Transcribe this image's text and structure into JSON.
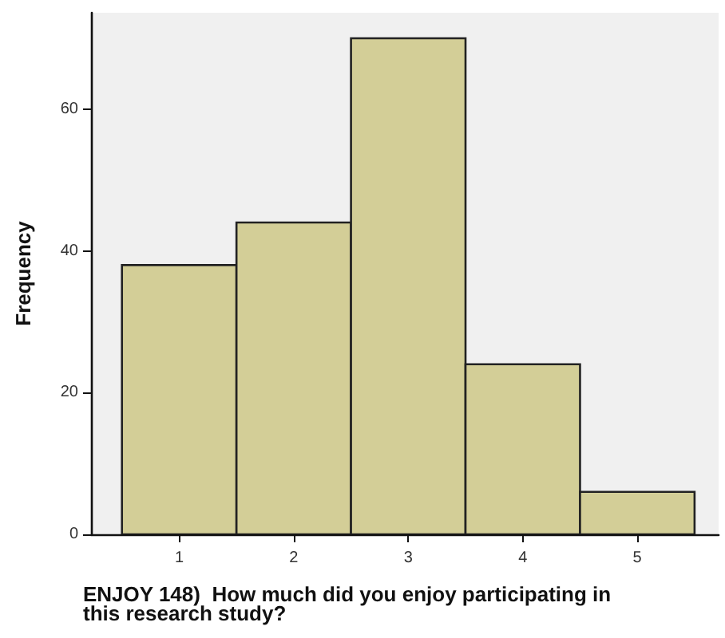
{
  "chart_data": {
    "type": "histogram",
    "xlabel": "ENJOY 148)  How much did you enjoy participating in this research study?",
    "ylabel": "Frequency",
    "bins": [
      0.5,
      1.5,
      2.5,
      3.5,
      4.5,
      5.5
    ],
    "values": [
      38,
      44,
      70,
      24,
      6
    ],
    "color": "#d3ce97",
    "xlim": [
      0.23,
      5.71
    ],
    "xticks": [
      1,
      2,
      3,
      4,
      5
    ],
    "ylim": [
      0,
      73.6
    ],
    "yticks": [
      0,
      20,
      40,
      60
    ],
    "grid": false
  }
}
